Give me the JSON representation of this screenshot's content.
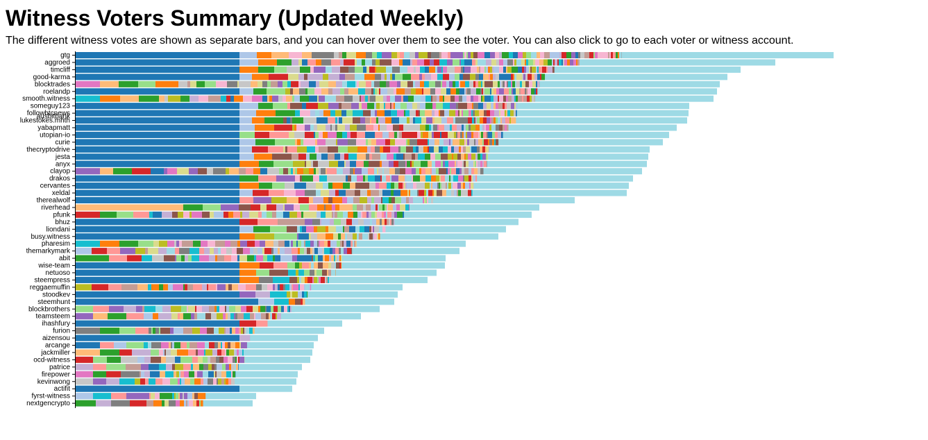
{
  "page": {
    "title": "Witness Voters Summary (Updated Weekly)",
    "subtitle": "The different witness votes are shown as separate bars, and you can hover over them to see the voter. You can also click to go to each voter or witness account."
  },
  "palette": [
    "#1f77b4",
    "#aec7e8",
    "#ff7f0e",
    "#ffbb78",
    "#2ca02c",
    "#98df8a",
    "#d62728",
    "#ff9896",
    "#9467bd",
    "#c5b0d5",
    "#8c564b",
    "#c49c94",
    "#e377c2",
    "#f7b6d2",
    "#7f7f7f",
    "#c7c7c7",
    "#bcbd22",
    "#dbdb8d",
    "#17becf",
    "#9edae5"
  ],
  "tail_color": "#9edae5",
  "chart_data": {
    "type": "bar",
    "orientation": "horizontal",
    "stacked": true,
    "title": "",
    "xlabel": "",
    "ylabel": "",
    "categories": [
      "gtg",
      "aggroed",
      "timcliff",
      "good-karma",
      "blocktrades",
      "roelandp",
      "smooth.witness",
      "someguy123",
      "followbtcnews",
      "lukestokes.mhth",
      "yabapmatt",
      "utopian-io",
      "curie",
      "thecryptodrive",
      "jesta",
      "anyx",
      "clayop",
      "drakos",
      "cervantes",
      "xeldal",
      "therealwolf",
      "riverhead",
      "pfunk",
      "bhuz",
      "liondani",
      "busy.witness",
      "pharesim",
      "themarkymark",
      "abit",
      "wise-team",
      "netuoso",
      "steempress",
      "reggaemuffin",
      "stoodkev",
      "steemhunt",
      "blockbrothers",
      "teamsteem",
      "ihashfury",
      "furion",
      "aizensou",
      "arcange",
      "jackmiller",
      "ocd-witness",
      "patrice",
      "firepower",
      "kevinwong",
      "actifit",
      "fyrst-witness",
      "nextgencrypto"
    ],
    "overlay_label": {
      "text": "ausbitbank",
      "after": "followbtcnews"
    },
    "totals": [
      1092,
      1008,
      958,
      939,
      928,
      924,
      919,
      884,
      883,
      881,
      866,
      855,
      846,
      827,
      825,
      823,
      816,
      803,
      797,
      794,
      719,
      668,
      657,
      638,
      620,
      609,
      562,
      553,
      533,
      532,
      520,
      507,
      471,
      464,
      459,
      438,
      411,
      384,
      358,
      349,
      343,
      341,
      338,
      326,
      320,
      318,
      312,
      260,
      255
    ],
    "first_segment_width": [
      236,
      236,
      236,
      236,
      35,
      236,
      35,
      236,
      236,
      236,
      236,
      236,
      236,
      236,
      236,
      236,
      35,
      236,
      236,
      236,
      236,
      155,
      35,
      236,
      236,
      236,
      35,
      23,
      25,
      236,
      236,
      236,
      23,
      236,
      236,
      25,
      25,
      236,
      35,
      236,
      35,
      35,
      25,
      25,
      25,
      25,
      236,
      25,
      29
    ],
    "top_segment_colors": [
      [
        "#aec7e8",
        "#ff7f0e",
        "#ffbb78"
      ],
      [
        "#aec7e8",
        "#ff7f0e",
        "#2ca02c"
      ],
      [
        "#ff7f0e",
        "#2ca02c",
        "#98df8a"
      ],
      [
        "#aec7e8",
        "#ff7f0e",
        "#d62728"
      ],
      [
        "#ffbb78",
        "#2ca02c",
        "#98df8a"
      ],
      [
        "#aec7e8",
        "#2ca02c",
        "#98df8a"
      ],
      [
        "#ff7f0e",
        "#ffbb78",
        "#2ca02c"
      ],
      [
        "#aec7e8",
        "#2ca02c",
        "#98df8a"
      ],
      [
        "#aec7e8",
        "#ff7f0e",
        "#2ca02c"
      ],
      [
        "#aec7e8",
        "#ff7f0e",
        "#2ca02c"
      ],
      [
        "#aec7e8",
        "#ff7f0e",
        "#d62728"
      ],
      [
        "#98df8a",
        "#d62728",
        "#ff9896"
      ],
      [
        "#aec7e8",
        "#2ca02c",
        "#98df8a"
      ],
      [
        "#aec7e8",
        "#d62728",
        "#ff9896"
      ],
      [
        "#aec7e8",
        "#ff7f0e",
        "#8c564b"
      ],
      [
        "#ff7f0e",
        "#2ca02c",
        "#98df8a"
      ],
      [
        "#ffbb78",
        "#2ca02c",
        "#d62728"
      ],
      [
        "#2ca02c",
        "#ff9896",
        "#9467bd"
      ],
      [
        "#ff7f0e",
        "#2ca02c",
        "#98df8a"
      ],
      [
        "#aec7e8",
        "#d62728",
        "#ff9896"
      ],
      [
        "#ff9896",
        "#9467bd",
        "#bcbd22"
      ],
      [
        "#2ca02c",
        "#98df8a",
        "#9467bd"
      ],
      [
        "#2ca02c",
        "#98df8a",
        "#ff9896"
      ],
      [
        "#d62728",
        "#ff9896",
        "#c49c94"
      ],
      [
        "#aec7e8",
        "#2ca02c",
        "#98df8a"
      ],
      [
        "#ff7f0e",
        "#bcbd22",
        "#98df8a"
      ],
      [
        "#ff7f0e",
        "#2ca02c",
        "#98df8a"
      ],
      [
        "#d62728",
        "#ff9896",
        "#9467bd"
      ],
      [
        "#2ca02c",
        "#ff9896",
        "#d62728"
      ],
      [
        "#ff7f0e",
        "#d62728",
        "#ff9896"
      ],
      [
        "#ff7f0e",
        "#98df8a",
        "#8c564b"
      ],
      [
        "#ff7f0e",
        "#7f7f7f",
        "#17becf"
      ],
      [
        "#d62728",
        "#ff9896",
        "#c49c94"
      ],
      [
        "#9467bd",
        "#c5b0d5",
        "#17becf"
      ],
      [
        "#1f77b4",
        "#aec7e8",
        "#17becf"
      ],
      [
        "#ff9896",
        "#9467bd",
        "#c5b0d5"
      ],
      [
        "#ffbb78",
        "#2ca02c",
        "#ff9896"
      ],
      [
        "#d62728",
        "#ff9896",
        "#c5b0d5"
      ],
      [
        "#2ca02c",
        "#98df8a",
        "#ff9896"
      ],
      [
        "#c5b0d5",
        "#ff9896",
        "#e377c2"
      ],
      [
        "#ff9896",
        "#aec7e8",
        "#98df8a"
      ],
      [
        "#2ca02c",
        "#d62728",
        "#c5b0d5"
      ],
      [
        "#98df8a",
        "#2ca02c",
        "#c7c7c7"
      ],
      [
        "#ff9896",
        "#98df8a",
        "#c49c94"
      ],
      [
        "#2ca02c",
        "#d62728",
        "#7f7f7f"
      ],
      [
        "#9467bd",
        "#c5b0d5",
        "#17becf"
      ],
      [
        "#9edae5",
        "#9edae5",
        "#9edae5"
      ],
      [
        "#17becf",
        "#ff9896",
        "#9467bd"
      ],
      [
        "#c5b0d5",
        "#7f7f7f",
        "#d62728"
      ]
    ]
  }
}
